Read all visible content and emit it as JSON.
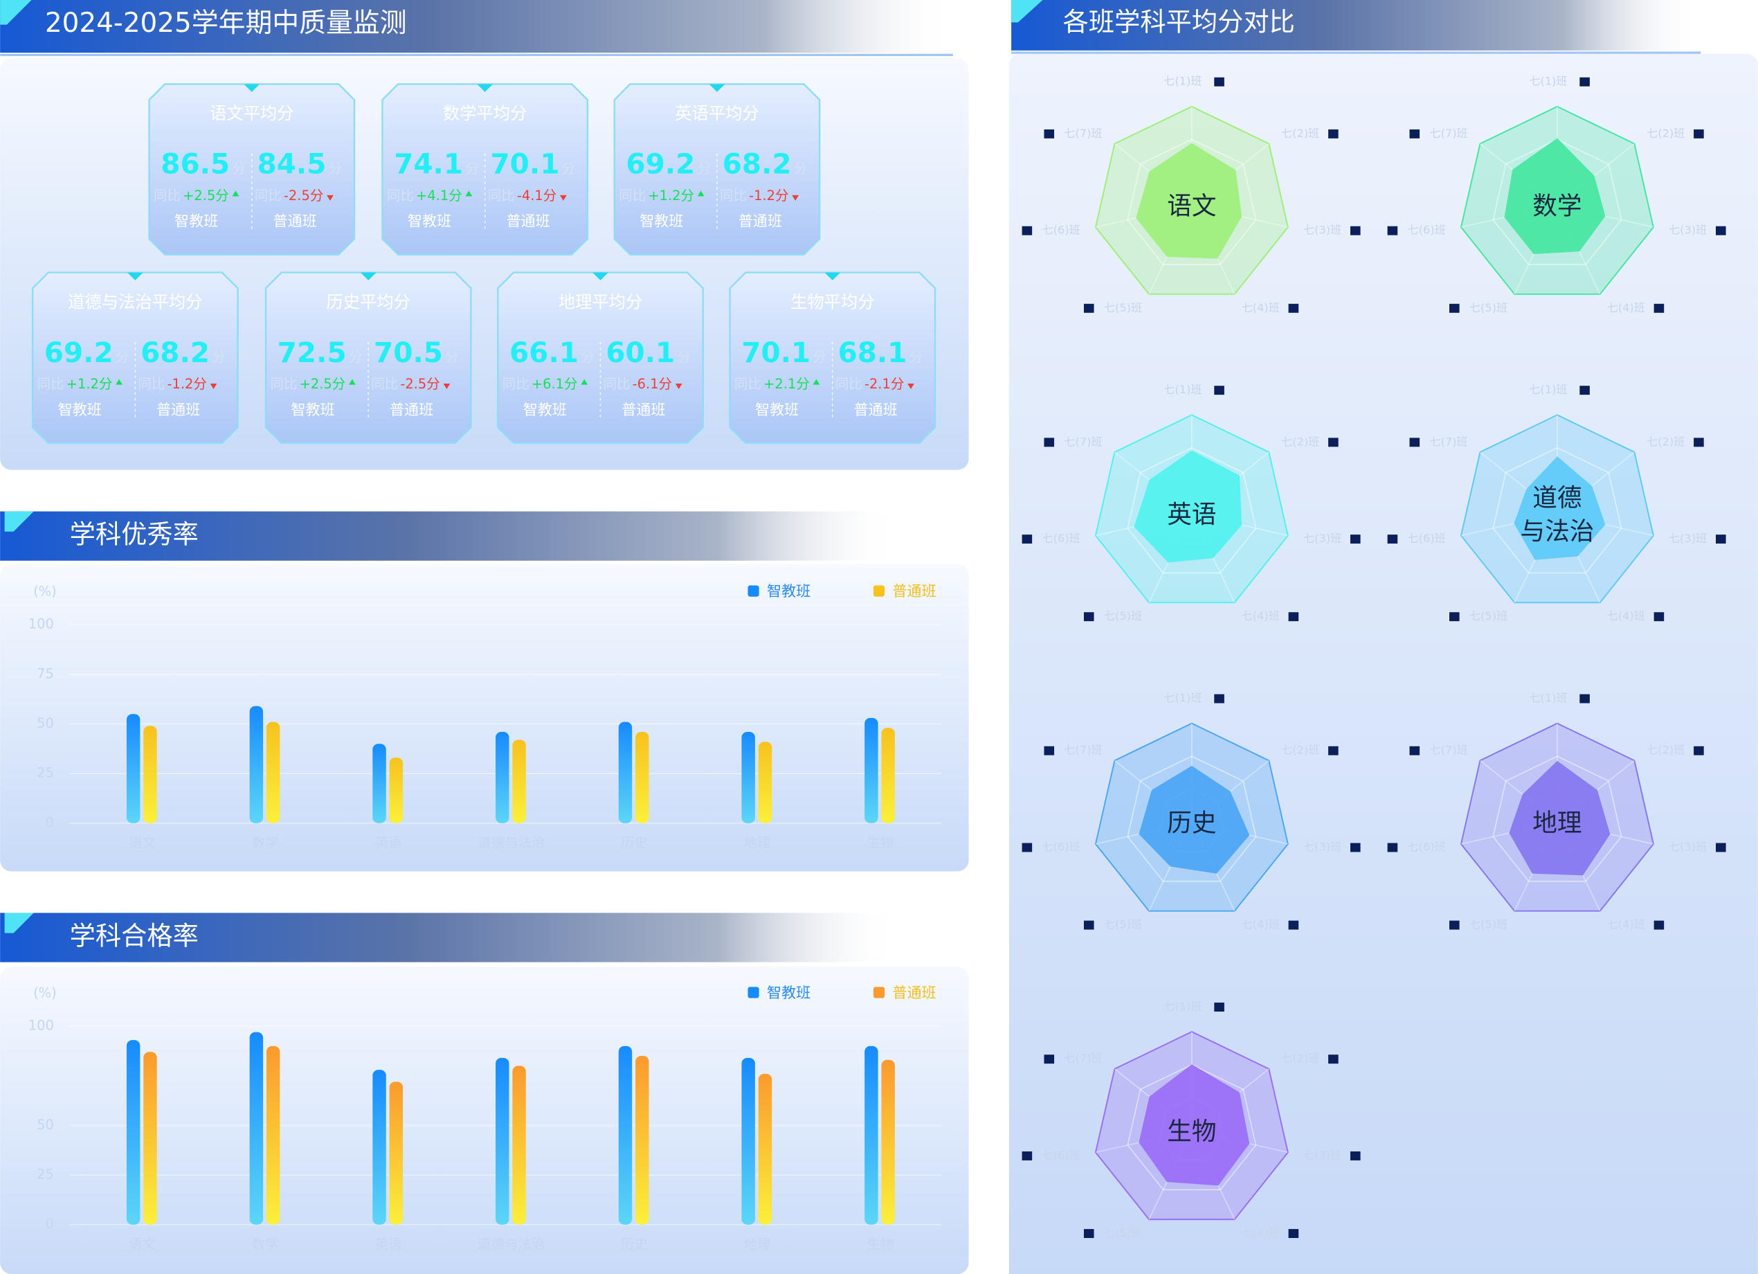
{
  "header": {
    "title": "2024-2025学年期中质量监测",
    "right_title": "各班学科平均分对比"
  },
  "score_cards": {
    "unit": "分",
    "yoy": "同比",
    "class_a": "智教班",
    "class_b": "普通班",
    "cards": [
      {
        "title": "语文平均分",
        "a": 86.5,
        "b": 84.5,
        "a_change": "+2.5分",
        "b_change": "-2.5分"
      },
      {
        "title": "数学平均分",
        "a": 74.1,
        "b": 70.1,
        "a_change": "+4.1分",
        "b_change": "-4.1分"
      },
      {
        "title": "英语平均分",
        "a": 69.2,
        "b": 68.2,
        "a_change": "+1.2分",
        "b_change": "-1.2分"
      },
      {
        "title": "道德与法治平均分",
        "a": 69.2,
        "b": 68.2,
        "a_change": "+1.2分",
        "b_change": "-1.2分"
      },
      {
        "title": "历史平均分",
        "a": 72.5,
        "b": 70.5,
        "a_change": "+2.5分",
        "b_change": "-2.5分"
      },
      {
        "title": "地理平均分",
        "a": 66.1,
        "b": 60.1,
        "a_change": "+6.1分",
        "b_change": "-6.1分"
      },
      {
        "title": "生物平均分",
        "a": 70.1,
        "b": 68.1,
        "a_change": "+2.1分",
        "b_change": "-2.1分"
      }
    ]
  },
  "chart_data": [
    {
      "type": "bar",
      "title": "学科优秀率",
      "y_label": "(%)",
      "categories": [
        "语文",
        "数学",
        "英语",
        "道德与法治",
        "历史",
        "地理",
        "生物"
      ],
      "series": [
        {
          "name": "智教班",
          "color": "#168bff",
          "color_end": "#5cd6f7",
          "values": [
            55,
            59,
            40,
            46,
            51,
            46,
            53
          ]
        },
        {
          "name": "普通班",
          "color": "#f7c21e",
          "color_end": "#fbf03a",
          "values": [
            49,
            51,
            33,
            42,
            46,
            41,
            48
          ]
        }
      ],
      "ylim": [
        0,
        100
      ],
      "yticks": [
        0,
        25,
        50,
        75,
        100
      ],
      "grid": true
    },
    {
      "type": "bar",
      "title": "学科合格率",
      "y_label": "(%)",
      "categories": [
        "语文",
        "数学",
        "英语",
        "道德与法治",
        "历史",
        "地理",
        "生物"
      ],
      "series": [
        {
          "name": "智教班",
          "color": "#168bff",
          "color_end": "#5cd6f7",
          "values": [
            93,
            97,
            78,
            84,
            90,
            84,
            90
          ]
        },
        {
          "name": "普通班",
          "color": "#fb9a2e",
          "color_end": "#fbf03a",
          "values": [
            87,
            90,
            72,
            80,
            85,
            76,
            83
          ]
        }
      ],
      "ylim": [
        0,
        100
      ],
      "yticks": [
        0,
        25,
        50,
        100
      ],
      "grid": true
    },
    {
      "type": "radar",
      "label_lines": [
        "语文"
      ],
      "color": "#9cf07a",
      "categories": [
        "七(1)班",
        "七(2)班",
        "七(3)班",
        "七(4)班",
        "七(5)班",
        "七(6)班",
        "七(7)班"
      ],
      "values": [
        63,
        57,
        52,
        60,
        58,
        58,
        55
      ],
      "rlim": [
        0,
        100
      ]
    },
    {
      "type": "radar",
      "label_lines": [
        "数学"
      ],
      "color": "#45e6a0",
      "categories": [
        "七(1)班",
        "七(2)班",
        "七(3)班",
        "七(4)班",
        "七(5)班",
        "七(6)班",
        "七(7)班"
      ],
      "values": [
        68,
        48,
        50,
        52,
        55,
        55,
        58
      ],
      "rlim": [
        0,
        100
      ]
    },
    {
      "type": "radar",
      "label_lines": [
        "英语"
      ],
      "color": "#4ff2ee",
      "categories": [
        "七(1)班",
        "七(2)班",
        "七(3)班",
        "七(4)班",
        "七(5)班",
        "七(6)班",
        "七(7)班"
      ],
      "values": [
        64,
        62,
        52,
        50,
        55,
        60,
        55
      ],
      "rlim": [
        0,
        100
      ]
    },
    {
      "type": "radar",
      "label_lines": [
        "道德",
        "与法治"
      ],
      "color": "#5ccaf7",
      "categories": [
        "七(1)班",
        "七(2)班",
        "七(3)班",
        "七(4)班",
        "七(5)班",
        "七(6)班",
        "七(7)班"
      ],
      "values": [
        58,
        45,
        50,
        48,
        52,
        45,
        40
      ],
      "rlim": [
        0,
        100
      ]
    },
    {
      "type": "radar",
      "label_lines": [
        "历史"
      ],
      "color": "#4aa6f6",
      "categories": [
        "七(1)班",
        "七(2)班",
        "七(3)班",
        "七(4)班",
        "七(5)班",
        "七(6)班",
        "七(7)班"
      ],
      "values": [
        57,
        50,
        60,
        58,
        50,
        55,
        52
      ],
      "rlim": [
        0,
        100
      ]
    },
    {
      "type": "radar",
      "label_lines": [
        "地理"
      ],
      "color": "#8676f0",
      "categories": [
        "七(1)班",
        "七(2)班",
        "七(3)班",
        "七(4)班",
        "七(5)班",
        "七(6)班",
        "七(7)班"
      ],
      "values": [
        62,
        52,
        55,
        60,
        58,
        50,
        45
      ],
      "rlim": [
        0,
        100
      ]
    },
    {
      "type": "radar",
      "label_lines": [
        "生物"
      ],
      "color": "#9a6ef6",
      "categories": [
        "七(1)班",
        "七(2)班",
        "七(3)班",
        "七(4)班",
        "七(5)班",
        "七(6)班",
        "七(7)班"
      ],
      "values": [
        67,
        62,
        60,
        62,
        58,
        55,
        55
      ],
      "rlim": [
        0,
        100
      ]
    }
  ]
}
